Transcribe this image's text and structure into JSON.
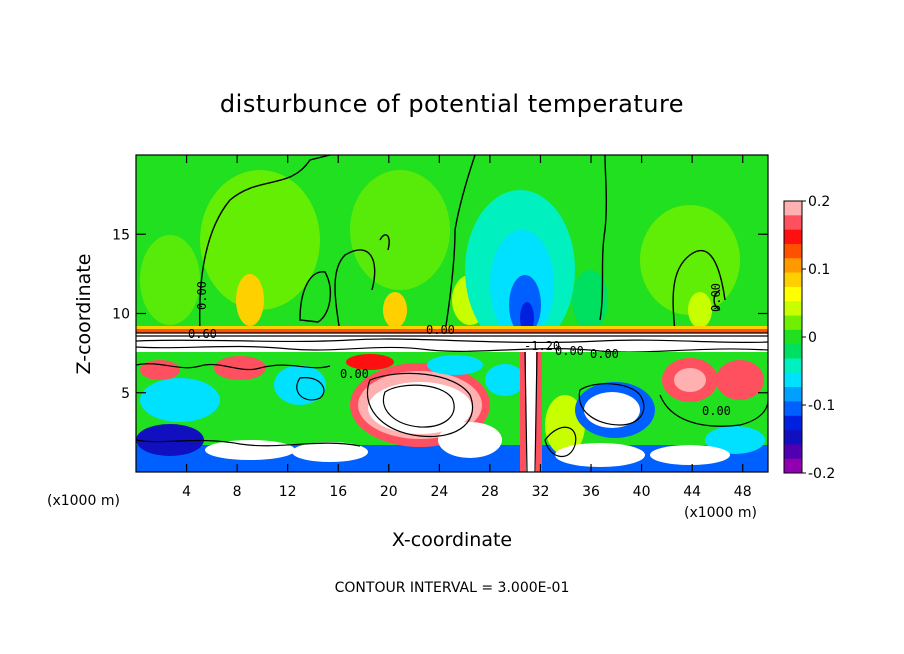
{
  "chart_data": {
    "type": "heatmap",
    "title": "disturbunce of potential temperature",
    "xlabel": "X-coordinate",
    "ylabel": "Z-coordinate",
    "x_unit_label": "(x1000 m)",
    "xlim": [
      0,
      50
    ],
    "ylim": [
      0,
      20
    ],
    "x_ticks": [
      4,
      8,
      12,
      16,
      20,
      24,
      28,
      32,
      36,
      40,
      44,
      48
    ],
    "y_ticks": [
      5,
      10,
      15
    ],
    "colorbar": {
      "min": -0.2,
      "max": 0.2,
      "tick_values": [
        0.2,
        0.1,
        0,
        -0.1,
        -0.2
      ],
      "tick_labels": [
        "0.2",
        "0.1",
        "0",
        "-0.1",
        "-0.2"
      ],
      "colors": [
        "#ffb0b0",
        "#ff5060",
        "#ff1010",
        "#ff5000",
        "#ff9900",
        "#ffd000",
        "#ffff00",
        "#c8ff00",
        "#70f000",
        "#20e020",
        "#00e060",
        "#00f0c0",
        "#00e0ff",
        "#00a0ff",
        "#0060ff",
        "#0020e0",
        "#1010c0",
        "#5000b0",
        "#9000b0"
      ]
    },
    "contour_labels": [
      "0.00",
      "0.60",
      "0.00",
      "0.00",
      "-1.20",
      "0.00",
      "0.00",
      "0.00",
      "0.00"
    ],
    "contour_interval_label": "CONTOUR INTERVAL = 3.000E-01"
  }
}
